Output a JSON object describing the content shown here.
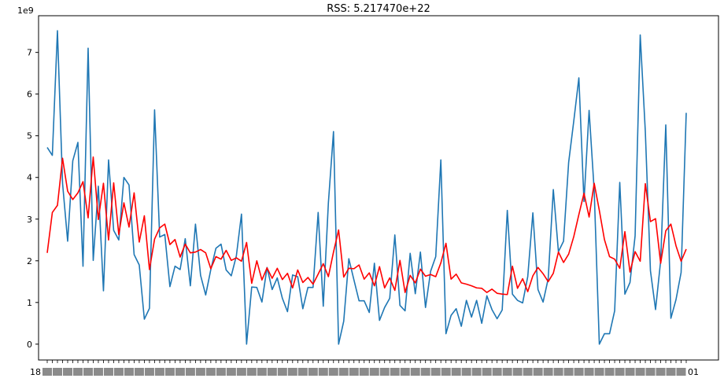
{
  "chart_data": {
    "type": "line",
    "title": "RSS: 5.217470e+22",
    "y_offset_label": "1e9",
    "xlabel": "",
    "ylabel": "",
    "ylim": [
      -0.38,
      7.88
    ],
    "ytick_values": [
      0,
      1,
      2,
      3,
      4,
      5,
      6,
      7
    ],
    "ytick_labels": [
      "0",
      "1",
      "2",
      "3",
      "4",
      "5",
      "6",
      "7"
    ],
    "x_tick_first_label": "18",
    "x_tick_last_label": "01",
    "grid": false,
    "legend": "none",
    "series": [
      {
        "color": "#1f77b4",
        "values": [
          4.72,
          4.53,
          7.52,
          3.86,
          2.47,
          4.4,
          4.84,
          1.87,
          7.1,
          2.01,
          3.79,
          1.28,
          4.42,
          2.73,
          2.5,
          4.0,
          3.82,
          2.15,
          1.9,
          0.6,
          0.86,
          5.62,
          2.57,
          2.63,
          1.38,
          1.87,
          1.79,
          2.53,
          1.4,
          2.88,
          1.65,
          1.18,
          1.79,
          2.3,
          2.4,
          1.78,
          1.64,
          2.12,
          3.12,
          0.0,
          1.37,
          1.36,
          1.01,
          1.84,
          1.31,
          1.59,
          1.1,
          0.78,
          1.66,
          1.62,
          0.85,
          1.36,
          1.36,
          3.16,
          0.91,
          3.39,
          5.1,
          0.0,
          0.55,
          2.05,
          1.54,
          1.04,
          1.04,
          0.76,
          1.94,
          0.57,
          0.88,
          1.1,
          2.62,
          0.93,
          0.8,
          2.18,
          1.21,
          2.21,
          0.88,
          1.75,
          2.1,
          4.42,
          0.25,
          0.69,
          0.85,
          0.43,
          1.05,
          0.65,
          1.05,
          0.5,
          1.16,
          0.83,
          0.61,
          0.82,
          3.21,
          1.2,
          1.05,
          0.99,
          1.62,
          3.15,
          1.31,
          1.01,
          1.57,
          3.71,
          2.22,
          2.47,
          4.36,
          5.35,
          6.39,
          3.42,
          5.61,
          3.68,
          0.0,
          0.25,
          0.25,
          0.8,
          3.88,
          1.2,
          1.48,
          2.6,
          7.42,
          5.1,
          1.76,
          0.83,
          2.0,
          5.26,
          0.62,
          1.07,
          1.72,
          5.55
        ]
      },
      {
        "color": "#ff0000",
        "values": [
          2.19,
          3.16,
          3.33,
          4.46,
          3.67,
          3.47,
          3.63,
          3.9,
          3.03,
          4.49,
          2.99,
          3.86,
          2.5,
          3.87,
          2.63,
          3.39,
          2.81,
          3.63,
          2.45,
          3.08,
          1.79,
          2.52,
          2.79,
          2.88,
          2.39,
          2.51,
          2.09,
          2.4,
          2.19,
          2.21,
          2.27,
          2.19,
          1.81,
          2.1,
          2.04,
          2.25,
          2.01,
          2.07,
          1.99,
          2.44,
          1.46,
          2.0,
          1.54,
          1.83,
          1.58,
          1.82,
          1.55,
          1.7,
          1.35,
          1.78,
          1.48,
          1.6,
          1.44,
          1.68,
          1.93,
          1.62,
          2.21,
          2.74,
          1.61,
          1.82,
          1.81,
          1.9,
          1.56,
          1.71,
          1.4,
          1.86,
          1.35,
          1.59,
          1.29,
          2.01,
          1.24,
          1.65,
          1.47,
          1.8,
          1.63,
          1.67,
          1.62,
          1.95,
          2.42,
          1.56,
          1.68,
          1.47,
          1.44,
          1.4,
          1.35,
          1.34,
          1.24,
          1.32,
          1.22,
          1.2,
          1.19,
          1.87,
          1.34,
          1.57,
          1.26,
          1.64,
          1.84,
          1.69,
          1.5,
          1.7,
          2.21,
          1.96,
          2.16,
          2.58,
          3.11,
          3.62,
          3.05,
          3.86,
          3.21,
          2.51,
          2.1,
          2.04,
          1.82,
          2.7,
          1.73,
          2.22,
          1.99,
          3.85,
          2.94,
          3.01,
          1.94,
          2.72,
          2.88,
          2.36,
          1.99,
          2.28
        ]
      }
    ]
  }
}
